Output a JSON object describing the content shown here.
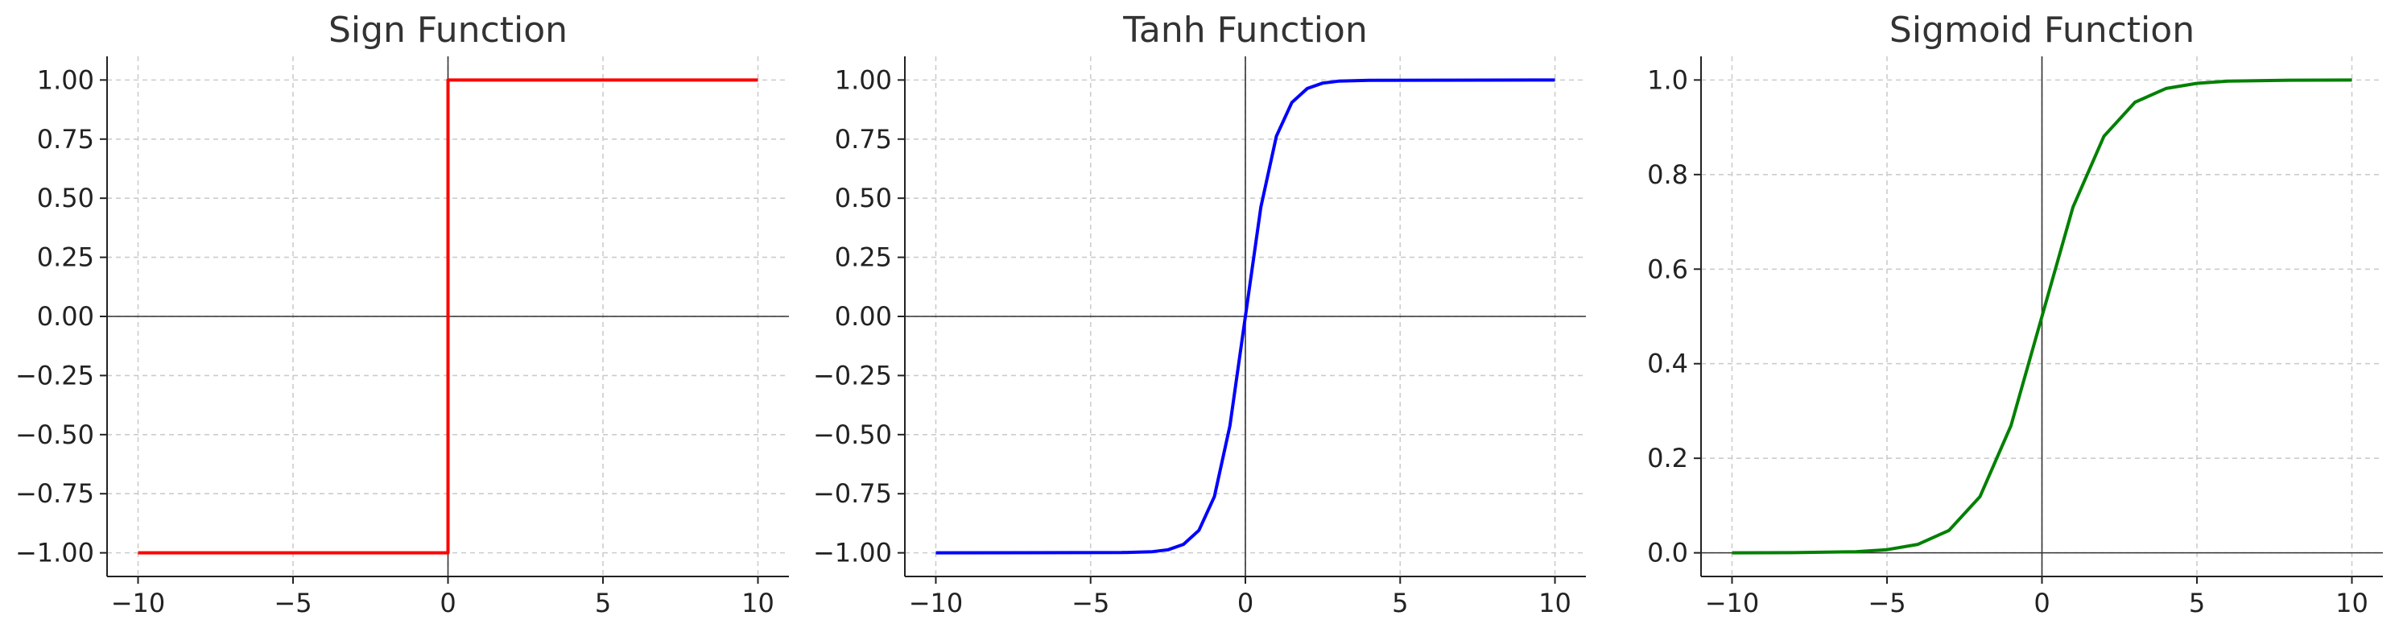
{
  "chart_data": [
    {
      "type": "line",
      "title": "Sign Function",
      "xlabel": "",
      "ylabel": "",
      "xlim": [
        -11,
        11
      ],
      "ylim": [
        -1.1,
        1.1
      ],
      "xticks": [
        -10,
        -5,
        0,
        5,
        10
      ],
      "xtick_labels": [
        "−10",
        "−5",
        "0",
        "5",
        "10"
      ],
      "yticks": [
        -1.0,
        -0.75,
        -0.5,
        -0.25,
        0.0,
        0.25,
        0.5,
        0.75,
        1.0
      ],
      "ytick_labels": [
        "−1.00",
        "−0.75",
        "−0.50",
        "−0.25",
        "0.00",
        "0.25",
        "0.50",
        "0.75",
        "1.00"
      ],
      "grid": true,
      "grid_style": "dashed",
      "zero_lines": true,
      "series": [
        {
          "color": "#ff0000",
          "x": [
            -10,
            0,
            0,
            10
          ],
          "y": [
            -1,
            -1,
            1,
            1
          ]
        }
      ]
    },
    {
      "type": "line",
      "title": "Tanh Function",
      "xlabel": "",
      "ylabel": "",
      "xlim": [
        -11,
        11
      ],
      "ylim": [
        -1.1,
        1.1
      ],
      "xticks": [
        -10,
        -5,
        0,
        5,
        10
      ],
      "xtick_labels": [
        "−10",
        "−5",
        "0",
        "5",
        "10"
      ],
      "yticks": [
        -1.0,
        -0.75,
        -0.5,
        -0.25,
        0.0,
        0.25,
        0.5,
        0.75,
        1.0
      ],
      "ytick_labels": [
        "−1.00",
        "−0.75",
        "−0.50",
        "−0.25",
        "0.00",
        "0.25",
        "0.50",
        "0.75",
        "1.00"
      ],
      "grid": true,
      "grid_style": "dashed",
      "zero_lines": true,
      "series": [
        {
          "color": "#0000ff",
          "x": [
            -10,
            -4,
            -3,
            -2.5,
            -2,
            -1.5,
            -1,
            -0.5,
            0,
            0.5,
            1,
            1.5,
            2,
            2.5,
            3,
            4,
            10
          ],
          "y": [
            -1.0,
            -0.999,
            -0.995,
            -0.987,
            -0.964,
            -0.905,
            -0.762,
            -0.462,
            0.0,
            0.462,
            0.762,
            0.905,
            0.964,
            0.987,
            0.995,
            0.999,
            1.0
          ]
        }
      ]
    },
    {
      "type": "line",
      "title": "Sigmoid Function",
      "xlabel": "",
      "ylabel": "",
      "xlim": [
        -11,
        11
      ],
      "ylim": [
        -0.05,
        1.05
      ],
      "xticks": [
        -10,
        -5,
        0,
        5,
        10
      ],
      "xtick_labels": [
        "−10",
        "−5",
        "0",
        "5",
        "10"
      ],
      "yticks": [
        0.0,
        0.2,
        0.4,
        0.6,
        0.8,
        1.0
      ],
      "ytick_labels": [
        "0.0",
        "0.2",
        "0.4",
        "0.6",
        "0.8",
        "1.0"
      ],
      "grid": true,
      "grid_style": "dashed",
      "zero_lines": true,
      "series": [
        {
          "color": "#008000",
          "x": [
            -10,
            -8,
            -6,
            -5,
            -4,
            -3,
            -2,
            -1,
            0,
            1,
            2,
            3,
            4,
            5,
            6,
            8,
            10
          ],
          "y": [
            4.54e-05,
            0.000335,
            0.00247,
            0.0067,
            0.018,
            0.0474,
            0.119,
            0.269,
            0.5,
            0.731,
            0.881,
            0.953,
            0.982,
            0.993,
            0.9975,
            0.99966,
            0.99995
          ]
        }
      ]
    }
  ]
}
